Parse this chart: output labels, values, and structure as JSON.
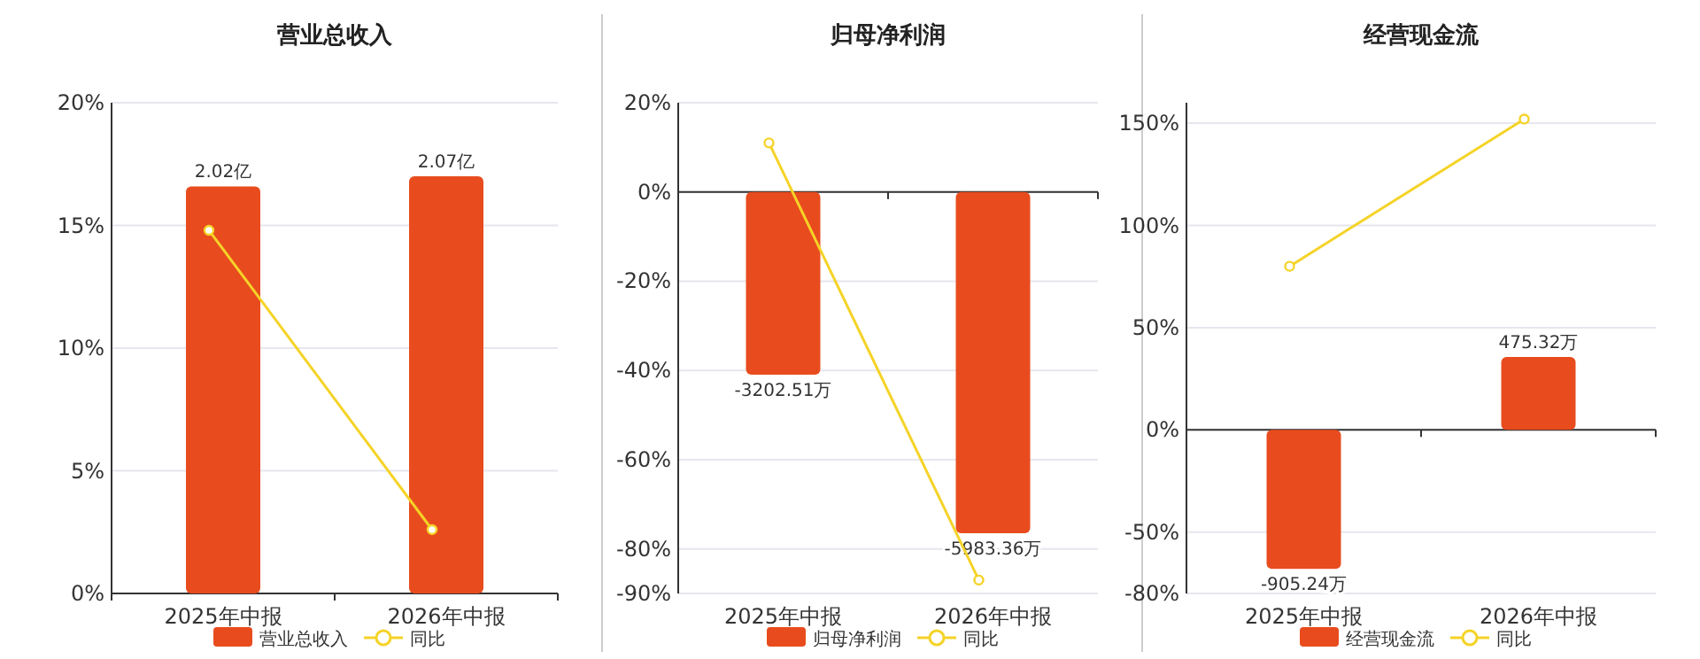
{
  "chart_data": [
    {
      "type": "bar",
      "title": "营业总收入",
      "categories": [
        "2025年中报",
        "2026年中报"
      ],
      "series": [
        {
          "name": "营业总收入",
          "type": "bar",
          "color": "#e84c1e",
          "axis": "y2",
          "values": [
            2.02,
            2.07
          ],
          "value_labels": [
            "2.02亿",
            "2.07亿"
          ]
        },
        {
          "name": "同比",
          "type": "line",
          "color": "#f5d327",
          "marker": "circle",
          "values": [
            14.8,
            2.6
          ]
        }
      ],
      "ylim": [
        0,
        20
      ],
      "yticks": [
        {
          "value": 0,
          "label": "0%"
        },
        {
          "value": 5,
          "label": "5%"
        },
        {
          "value": 10,
          "label": "10%"
        },
        {
          "value": 15,
          "label": "15%"
        },
        {
          "value": 20,
          "label": "20%"
        }
      ],
      "grid": "y",
      "legend": "bottom",
      "tick_labels": "xy"
    },
    {
      "type": "bar",
      "title": "归母净利润",
      "categories": [
        "2025年中报",
        "2026年中报"
      ],
      "series": [
        {
          "name": "归母净利润",
          "type": "bar",
          "color": "#e84c1e",
          "axis": "y2",
          "values": [
            -3202.51,
            -5983.36
          ],
          "value_labels": [
            "-3202.51万",
            "-5983.36万"
          ]
        },
        {
          "name": "同比",
          "type": "line",
          "color": "#f5d327",
          "marker": "circle",
          "values": [
            11,
            -87
          ]
        }
      ],
      "ylim": [
        -90,
        20
      ],
      "yticks": [
        {
          "value": -90,
          "label": "-90%"
        },
        {
          "value": -80,
          "label": "-80%"
        },
        {
          "value": -60,
          "label": "-60%"
        },
        {
          "value": -40,
          "label": "-40%"
        },
        {
          "value": -20,
          "label": "-20%"
        },
        {
          "value": 0,
          "label": "0%"
        },
        {
          "value": 20,
          "label": "20%"
        }
      ],
      "grid": "y",
      "legend": "bottom",
      "tick_labels": "xy"
    },
    {
      "type": "bar",
      "title": "经营现金流",
      "categories": [
        "2025年中报",
        "2026年中报"
      ],
      "series": [
        {
          "name": "经营现金流",
          "type": "bar",
          "color": "#e84c1e",
          "axis": "y2",
          "values": [
            -905.24,
            475.32
          ],
          "value_labels": [
            "-905.24万",
            "475.32万"
          ]
        },
        {
          "name": "同比",
          "type": "line",
          "color": "#f5d327",
          "marker": "circle",
          "values": [
            80,
            152
          ]
        }
      ],
      "ylim": [
        -80,
        160
      ],
      "yticks": [
        {
          "value": -80,
          "label": "-80%"
        },
        {
          "value": -50,
          "label": "-50%"
        },
        {
          "value": 0,
          "label": "0%"
        },
        {
          "value": 50,
          "label": "50%"
        },
        {
          "value": 100,
          "label": "100%"
        },
        {
          "value": 150,
          "label": "150%"
        }
      ],
      "grid": "y",
      "legend": "bottom",
      "tick_labels": "xy"
    }
  ]
}
